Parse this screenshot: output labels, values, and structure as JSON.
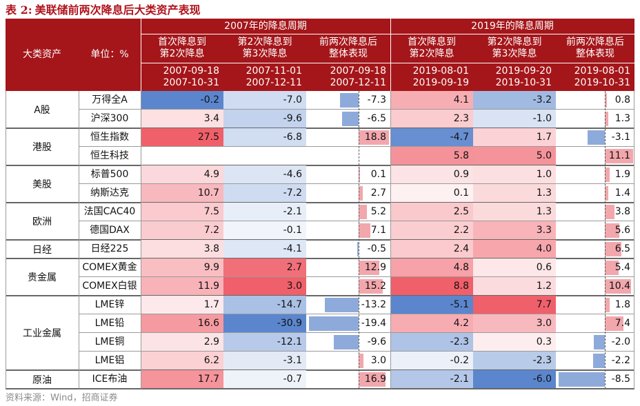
{
  "title": {
    "tag": "表 2:",
    "text": "美联储前两次降息后大类资产表现"
  },
  "header": {
    "col_asset": "大类资产",
    "col_unit": "单位：%",
    "period_2007": "2007年的降息周期",
    "period_2019": "2019年的降息周期",
    "sub": [
      {
        "l1": "首次降息到",
        "l2": "第2次降息",
        "d1": "2007-09-18",
        "d2": "2007-10-31"
      },
      {
        "l1": "第2次降息到",
        "l2": "第3次降息",
        "d1": "2007-11-01",
        "d2": "2007-12-11"
      },
      {
        "l1": "前两次降息后",
        "l2": "整体表现",
        "d1": "2007-09-18",
        "d2": "2007-12-11"
      },
      {
        "l1": "首次降息到",
        "l2": "第2次降息",
        "d1": "2019-08-01",
        "d2": "2019-09-19"
      },
      {
        "l1": "第2次降息到",
        "l2": "第3次降息",
        "d1": "2019-09-20",
        "d2": "2019-10-31"
      },
      {
        "l1": "前两次降息后",
        "l2": "整体表现",
        "d1": "2019-08-01",
        "d2": "2019-10-31"
      }
    ]
  },
  "groups": [
    {
      "name": "A股",
      "rows": [
        {
          "asset": "万得全A",
          "v": [
            "-0.2",
            "-7.0",
            "-7.3",
            "4.1",
            "-3.2",
            "0.8"
          ]
        },
        {
          "asset": "沪深300",
          "v": [
            "3.4",
            "-9.6",
            "-6.5",
            "2.3",
            "-1.0",
            "1.3"
          ]
        }
      ]
    },
    {
      "name": "港股",
      "rows": [
        {
          "asset": "恒生指数",
          "v": [
            "27.5",
            "-6.8",
            "18.8",
            "-4.7",
            "1.7",
            "-3.1"
          ]
        },
        {
          "asset": "恒生科技",
          "v": [
            "",
            "",
            "",
            "5.8",
            "5.0",
            "11.1"
          ]
        }
      ]
    },
    {
      "name": "美股",
      "rows": [
        {
          "asset": "标普500",
          "v": [
            "4.9",
            "-4.6",
            "0.1",
            "0.9",
            "1.0",
            "1.9"
          ]
        },
        {
          "asset": "纳斯达克",
          "v": [
            "10.7",
            "-7.2",
            "2.7",
            "0.1",
            "1.3",
            "1.4"
          ]
        }
      ]
    },
    {
      "name": "欧洲",
      "rows": [
        {
          "asset": "法国CAC40",
          "v": [
            "7.5",
            "-2.1",
            "5.2",
            "2.5",
            "1.3",
            "3.8"
          ]
        },
        {
          "asset": "德国DAX",
          "v": [
            "7.2",
            "-0.1",
            "7.1",
            "2.2",
            "3.3",
            "5.6"
          ]
        }
      ]
    },
    {
      "name": "日经",
      "rows": [
        {
          "asset": "日经225",
          "v": [
            "3.8",
            "-4.1",
            "-0.5",
            "2.4",
            "4.0",
            "6.5"
          ]
        }
      ]
    },
    {
      "name": "贵金属",
      "rows": [
        {
          "asset": "COMEX黄金",
          "v": [
            "9.9",
            "2.7",
            "12.9",
            "4.8",
            "0.6",
            "5.4"
          ]
        },
        {
          "asset": "COMEX白银",
          "v": [
            "11.9",
            "3.0",
            "15.2",
            "8.8",
            "1.2",
            "10.4"
          ]
        }
      ]
    },
    {
      "name": "工业金属",
      "rows": [
        {
          "asset": "LME锌",
          "v": [
            "1.7",
            "-14.7",
            "-13.2",
            "-5.1",
            "7.7",
            "1.8"
          ]
        },
        {
          "asset": "LME铅",
          "v": [
            "16.6",
            "-30.9",
            "-19.4",
            "4.2",
            "3.0",
            "7.4"
          ]
        },
        {
          "asset": "LME铜",
          "v": [
            "2.9",
            "-12.1",
            "-9.6",
            "-2.3",
            "0.3",
            "-2.0"
          ]
        },
        {
          "asset": "LME铝",
          "v": [
            "6.2",
            "-3.1",
            "3.0",
            "-0.2",
            "-2.3",
            "-2.2"
          ]
        }
      ]
    },
    {
      "name": "原油",
      "rows": [
        {
          "asset": "ICE布油",
          "v": [
            "17.7",
            "-0.7",
            "16.9",
            "-2.1",
            "-6.0",
            "-8.5"
          ]
        }
      ]
    }
  ],
  "source": "资料来源：Wind，招商证券",
  "colors": {
    "header_bg": "#a4161a",
    "title": "#b0121b",
    "pos_max": "#f0606a",
    "neg_max": "#5b86cd",
    "bar_pos": "#f2a7ad",
    "bar_neg": "#8eaadb"
  }
}
